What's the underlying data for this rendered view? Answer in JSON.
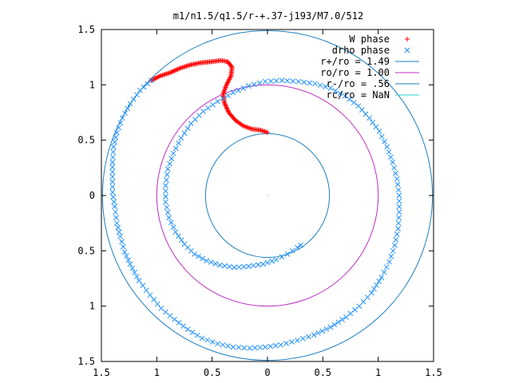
{
  "chart_data": {
    "type": "scatter",
    "title": "m1/n1.5/q1.5/r-+.37-j193/M7.0/512",
    "xlabel": "",
    "ylabel": "",
    "xlim": [
      -1.5,
      1.5
    ],
    "ylim": [
      -1.5,
      1.5
    ],
    "x_ticks": [
      -1.5,
      -1,
      -0.5,
      0,
      0.5,
      1,
      1.5
    ],
    "y_ticks": [
      -1.5,
      -1,
      -0.5,
      0,
      0.5,
      1,
      1.5
    ],
    "x_tick_labels": [
      "1.5",
      "1",
      "0.5",
      "0",
      "0.5",
      "1",
      "1.5"
    ],
    "y_tick_labels": [
      "1.5",
      "1",
      "0.5",
      "0",
      "0.5",
      "1",
      "1.5"
    ],
    "grid": false,
    "legend_position": "top-right",
    "legend": [
      {
        "label": "W phase",
        "color": "#ff0000",
        "marker": "plus"
      },
      {
        "label": "drho phase",
        "color": "#1e90ff",
        "marker": "cross"
      },
      {
        "label": "r+/ro = 1.49",
        "color": "#1f7fbf",
        "marker": "line"
      },
      {
        "label": "ro/ro = 1.00",
        "color": "#bf2fbf",
        "marker": "line"
      },
      {
        "label": "r-/ro = .56",
        "color": "#1f7fbf",
        "marker": "line"
      },
      {
        "label": "rc/ro = NaN",
        "color": "#2fcfcf",
        "marker": "line"
      }
    ],
    "circles": [
      {
        "name": "r+/ro",
        "radius": 1.49,
        "color": "#1f7fbf"
      },
      {
        "name": "ro/ro",
        "radius": 1.0,
        "color": "#bf2fbf"
      },
      {
        "name": "r-/ro",
        "radius": 0.56,
        "color": "#1f7fbf"
      }
    ],
    "series": [
      {
        "name": "W phase",
        "color": "#ff0000",
        "marker": "plus",
        "points": [
          [
            -1.05,
            1.04
          ],
          [
            -0.97,
            1.08
          ],
          [
            -0.88,
            1.11
          ],
          [
            -0.79,
            1.15
          ],
          [
            -0.7,
            1.18
          ],
          [
            -0.6,
            1.2
          ],
          [
            -0.5,
            1.21
          ],
          [
            -0.42,
            1.22
          ],
          [
            -0.36,
            1.21
          ],
          [
            -0.32,
            1.16
          ],
          [
            -0.33,
            1.08
          ],
          [
            -0.37,
            1.0
          ],
          [
            -0.4,
            0.92
          ],
          [
            -0.39,
            0.84
          ],
          [
            -0.35,
            0.75
          ],
          [
            -0.29,
            0.68
          ],
          [
            -0.22,
            0.63
          ],
          [
            -0.14,
            0.6
          ],
          [
            -0.06,
            0.59
          ],
          [
            0.0,
            0.57
          ]
        ]
      },
      {
        "name": "drho phase",
        "color": "#1e90ff",
        "marker": "cross",
        "points": [
          [
            -1.05,
            1.04
          ],
          [
            -1.15,
            0.95
          ],
          [
            -1.24,
            0.83
          ],
          [
            -1.31,
            0.7
          ],
          [
            -1.36,
            0.57
          ],
          [
            -1.39,
            0.44
          ],
          [
            -1.4,
            0.3
          ],
          [
            -1.4,
            0.17
          ],
          [
            -1.4,
            0.03
          ],
          [
            -1.38,
            -0.1
          ],
          [
            -1.36,
            -0.25
          ],
          [
            -1.33,
            -0.37
          ],
          [
            -1.29,
            -0.51
          ],
          [
            -1.24,
            -0.62
          ],
          [
            -1.16,
            -0.77
          ],
          [
            -1.06,
            -0.9
          ],
          [
            -0.96,
            -1.02
          ],
          [
            -0.84,
            -1.12
          ],
          [
            -0.72,
            -1.21
          ],
          [
            -0.59,
            -1.29
          ],
          [
            -0.45,
            -1.34
          ],
          [
            -0.31,
            -1.37
          ],
          [
            -0.16,
            -1.38
          ],
          [
            -0.02,
            -1.37
          ],
          [
            0.12,
            -1.35
          ],
          [
            0.27,
            -1.31
          ],
          [
            0.42,
            -1.26
          ],
          [
            0.57,
            -1.19
          ],
          [
            0.71,
            -1.1
          ],
          [
            0.83,
            -1.0
          ],
          [
            0.94,
            -0.88
          ],
          [
            1.03,
            -0.74
          ],
          [
            1.1,
            -0.6
          ],
          [
            1.15,
            -0.45
          ],
          [
            1.18,
            -0.3
          ],
          [
            1.19,
            -0.15
          ],
          [
            1.19,
            0.0
          ],
          [
            1.17,
            0.15
          ],
          [
            1.13,
            0.3
          ],
          [
            1.08,
            0.44
          ],
          [
            1.01,
            0.58
          ],
          [
            0.92,
            0.7
          ],
          [
            0.82,
            0.81
          ],
          [
            0.7,
            0.9
          ],
          [
            0.57,
            0.97
          ],
          [
            0.43,
            1.01
          ],
          [
            0.28,
            1.03
          ],
          [
            0.13,
            1.04
          ],
          [
            -0.02,
            1.03
          ],
          [
            -0.17,
            0.99
          ],
          [
            -0.31,
            0.93
          ],
          [
            -0.45,
            0.85
          ],
          [
            -0.58,
            0.76
          ],
          [
            -0.69,
            0.65
          ],
          [
            -0.78,
            0.52
          ],
          [
            -0.85,
            0.38
          ],
          [
            -0.9,
            0.24
          ],
          [
            -0.92,
            0.09
          ],
          [
            -0.92,
            -0.06
          ],
          [
            -0.89,
            -0.2
          ],
          [
            -0.83,
            -0.33
          ],
          [
            -0.75,
            -0.44
          ],
          [
            -0.66,
            -0.53
          ],
          [
            -0.55,
            -0.59
          ],
          [
            -0.43,
            -0.63
          ],
          [
            -0.3,
            -0.65
          ],
          [
            -0.17,
            -0.64
          ],
          [
            -0.04,
            -0.62
          ],
          [
            0.08,
            -0.58
          ],
          [
            0.18,
            -0.53
          ],
          [
            0.27,
            -0.47
          ],
          [
            0.3,
            -0.45
          ]
        ]
      }
    ]
  }
}
